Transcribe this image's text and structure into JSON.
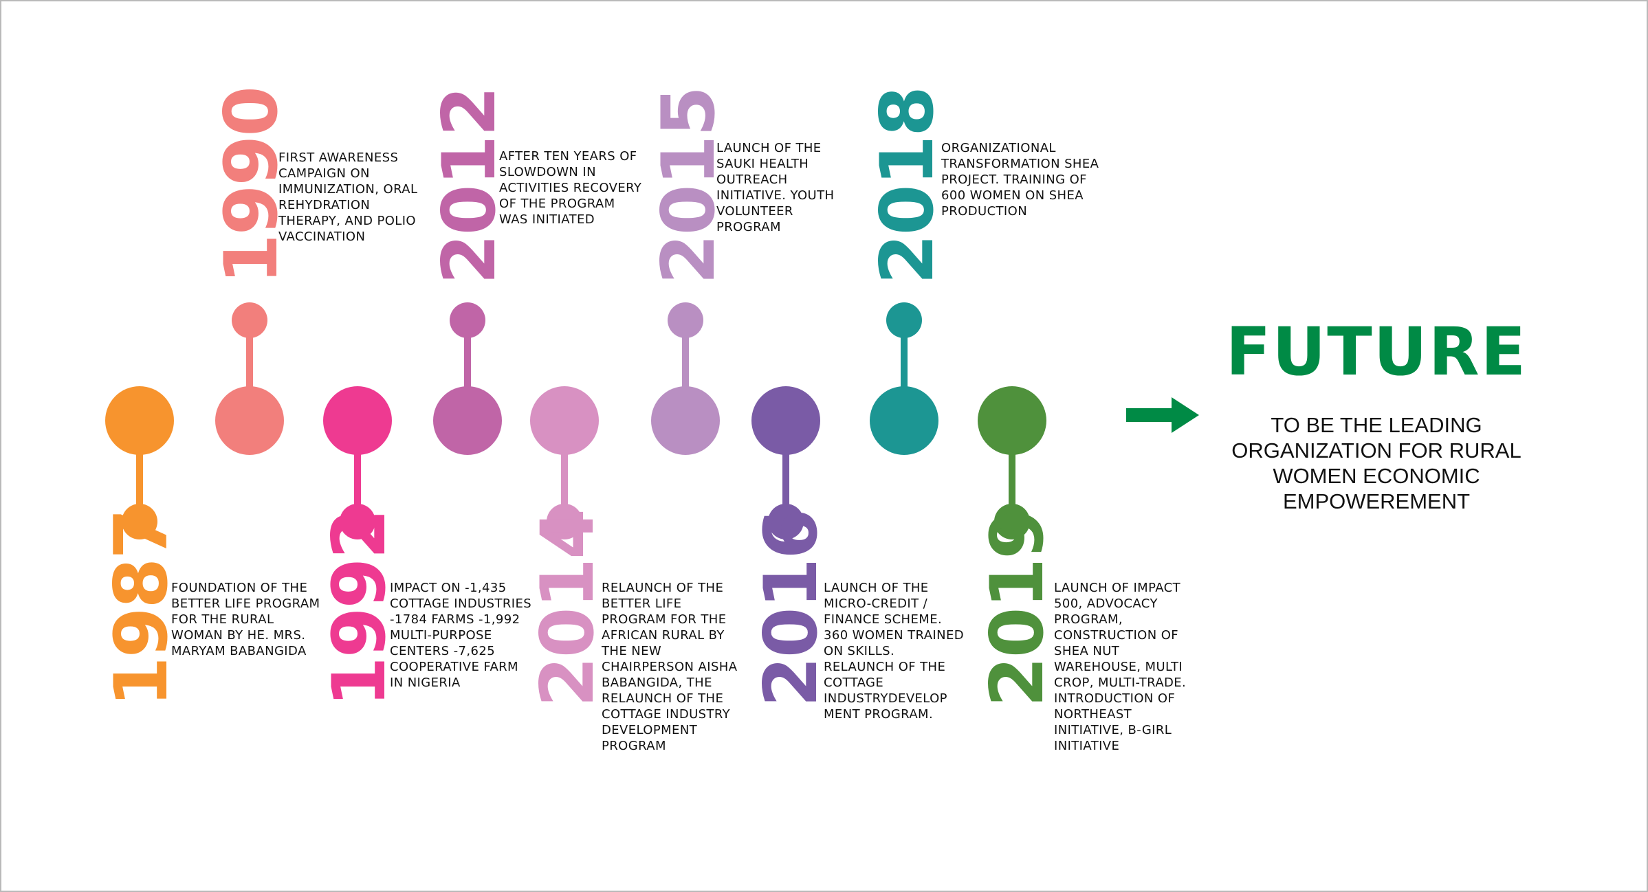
{
  "milestones": [
    {
      "year": "1987",
      "position": "bottom",
      "color": "#f7942e",
      "text": "FOUNDATION OF THE BETTER LIFE PROGRAM FOR THE RURAL WOMAN BY HE. MRS. MARYAM BABANGIDA"
    },
    {
      "year": "1990",
      "position": "top",
      "color": "#f27f7c",
      "text": "FIRST AWARENESS CAMPAIGN ON IMMUNIZATION, ORAL REHYDRATION THERAPY, AND POLIO VACCINATION"
    },
    {
      "year": "1992",
      "position": "bottom",
      "color": "#ee3a91",
      "text": "IMPACT ON -1,435 COTTAGE INDUSTRIES -1784 FARMS -1,992 MULTI-PURPOSE CENTERS -7,625 COOPERATIVE FARM IN NIGERIA"
    },
    {
      "year": "2012",
      "position": "top",
      "color": "#c065a7",
      "text": "AFTER TEN YEARS OF SLOWDOWN IN ACTIVITIES RECOVERY OF THE PROGRAM WAS INITIATED"
    },
    {
      "year": "2014",
      "position": "bottom",
      "color": "#d891c2",
      "text": "RELAUNCH OF THE BETTER LIFE PROGRAM FOR THE AFRICAN RURAL BY THE NEW CHAIRPERSON AISHA BABANGIDA, THE RELAUNCH OF THE COTTAGE INDUSTRY DEVELOPMENT PROGRAM"
    },
    {
      "year": "2015",
      "position": "top",
      "color": "#b98fc2",
      "text": "LAUNCH OF THE SAUKI HEALTH OUTREACH INITIATIVE. YOUTH VOLUNTEER PROGRAM"
    },
    {
      "year": "2016",
      "position": "bottom",
      "color": "#7a5ba6",
      "text": "LAUNCH OF THE MICRO-CREDIT / FINANCE SCHEME. 360 WOMEN TRAINED ON SKILLS. RELAUNCH OF THE COTTAGE INDUSTRYDEVELOP MENT PROGRAM."
    },
    {
      "year": "2018",
      "position": "top",
      "color": "#1c9693",
      "text": "ORGANIZATIONAL TRANSFORMATION SHEA PROJECT. TRAINING OF 600 WOMEN ON SHEA PRODUCTION"
    },
    {
      "year": "2019",
      "position": "bottom",
      "color": "#4f913c",
      "text": "LAUNCH OF IMPACT 500, ADVOCACY PROGRAM, CONSTRUCTION OF SHEA NUT WAREHOUSE, MULTI CROP, MULTI-TRADE. INTRODUCTION OF NORTHEAST INITIATIVE, B-GIRL INITIATIVE"
    }
  ],
  "future": {
    "title": "FUTURE",
    "text": "TO BE THE LEADING ORGANIZATION FOR RURAL WOMEN ECONOMIC EMPOWEREMENT",
    "color": "#008a45",
    "arrow": "right-arrow-icon"
  }
}
